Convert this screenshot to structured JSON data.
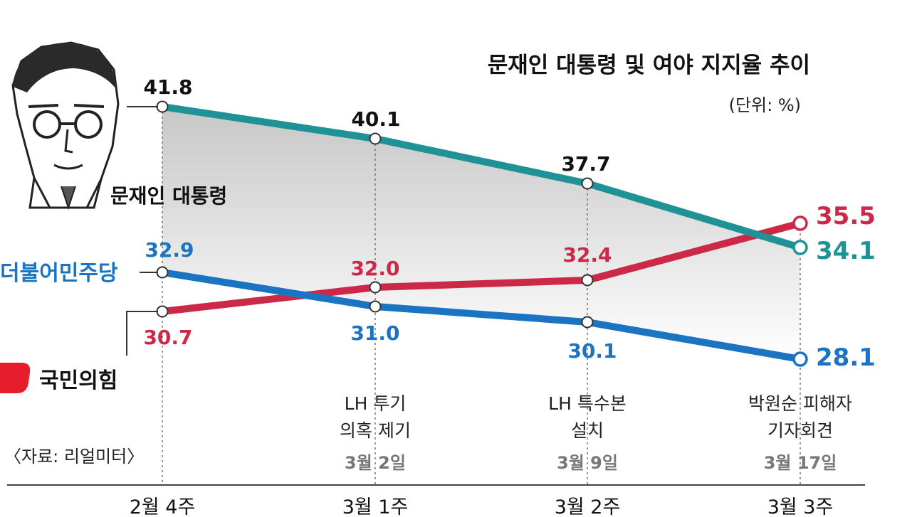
{
  "chart_data": {
    "type": "line",
    "title": "문재인 대통령 및 여야 지지율 추이",
    "unit": "(단위: %)",
    "source": "〈자료: 리얼미터〉",
    "categories": [
      "2월 4주",
      "3월 1주",
      "3월 2주",
      "3월 3주"
    ],
    "series": [
      {
        "name": "문재인 대통령",
        "values": [
          41.8,
          40.1,
          37.7,
          34.1
        ],
        "color": "#1f9296"
      },
      {
        "name": "더불어민주당",
        "values": [
          32.9,
          31.0,
          30.1,
          28.1
        ],
        "color": "#1a74c2"
      },
      {
        "name": "국민의힘",
        "values": [
          30.7,
          32.0,
          32.4,
          35.5
        ],
        "color": "#cc2948"
      }
    ],
    "annotations": [
      {
        "category": "3월 1주",
        "lines": [
          "LH 투기",
          "의혹 제기"
        ],
        "date": "3월 2일"
      },
      {
        "category": "3월 2주",
        "lines": [
          "LH 특수본",
          "설치"
        ],
        "date": "3월 9일"
      },
      {
        "category": "3월 3주",
        "lines": [
          "박원순 피해자",
          "기자회견"
        ],
        "date": "3월 17일"
      }
    ],
    "grid": false,
    "legend": "left",
    "ylim": [
      26,
      44
    ]
  },
  "colors": {
    "moon": "#1f9296",
    "minjoo": "#1a74c2",
    "ppp": "#cc2948",
    "fill": "#cfcfcf",
    "text": "#111111",
    "gray": "#777777"
  }
}
